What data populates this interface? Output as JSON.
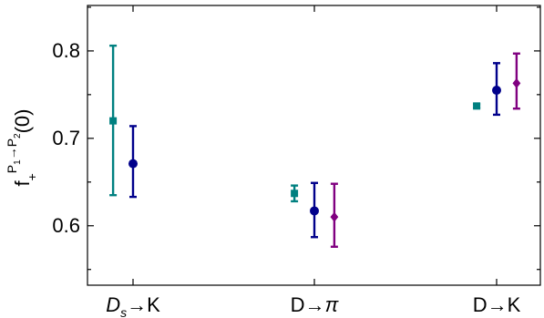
{
  "chart_data": {
    "type": "scatter",
    "ylabel": {
      "base": "f",
      "subscript": "+",
      "sup_p1": "P",
      "sup_p1_sub": "1",
      "sup_arrow": "→",
      "sup_p2": "P",
      "sup_p2_sub": "2",
      "arg": "(0)"
    },
    "ylim": [
      0.532,
      0.852
    ],
    "yticks": [
      {
        "value": 0.6,
        "label": "0.6"
      },
      {
        "value": 0.7,
        "label": "0.7"
      },
      {
        "value": 0.8,
        "label": "0.8"
      }
    ],
    "categories": [
      {
        "main": "D",
        "sub": "s",
        "rest": "→K"
      },
      {
        "main": "D→",
        "sub": "",
        "rest": "π"
      },
      {
        "main": "D→K",
        "sub": "",
        "rest": ""
      }
    ],
    "series": [
      {
        "marker": "square",
        "color": "#008080",
        "offset": -0.22,
        "points": [
          {
            "category": 0,
            "y": 0.72,
            "low": 0.635,
            "high": 0.806
          },
          {
            "category": 1,
            "y": 0.637,
            "low": 0.628,
            "high": 0.646
          },
          {
            "category": 2,
            "y": 0.737,
            "low": 0.735,
            "high": 0.739
          }
        ]
      },
      {
        "marker": "circle",
        "color": "#00008b",
        "offset": 0.0,
        "points": [
          {
            "category": 0,
            "y": 0.671,
            "low": 0.633,
            "high": 0.714
          },
          {
            "category": 1,
            "y": 0.617,
            "low": 0.587,
            "high": 0.649
          },
          {
            "category": 2,
            "y": 0.755,
            "low": 0.727,
            "high": 0.786
          }
        ]
      },
      {
        "marker": "diamond",
        "color": "#800080",
        "offset": 0.22,
        "points": [
          {
            "category": 1,
            "y": 0.61,
            "low": 0.576,
            "high": 0.648
          },
          {
            "category": 2,
            "y": 0.763,
            "low": 0.734,
            "high": 0.797
          }
        ]
      }
    ]
  }
}
